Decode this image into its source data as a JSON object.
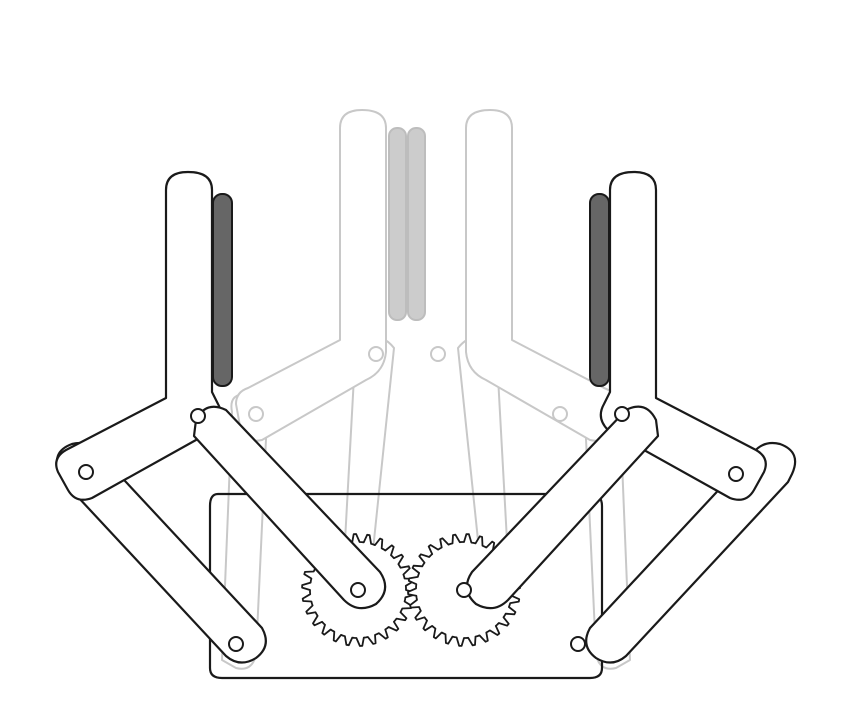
{
  "diagram": {
    "kind": "parallel-gripper-linkage",
    "states": [
      "closed-ghost",
      "open"
    ],
    "colors": {
      "ink": "#1a1a1a",
      "ghost": "#c8c8c8",
      "finger_pad_dark": "#666666",
      "finger_pad_ghost": "#cccccc",
      "background": "#ffffff"
    },
    "gears": {
      "count": 2,
      "teeth_each": 26
    },
    "fingers": {
      "count": 2
    },
    "links_per_side": 2
  }
}
